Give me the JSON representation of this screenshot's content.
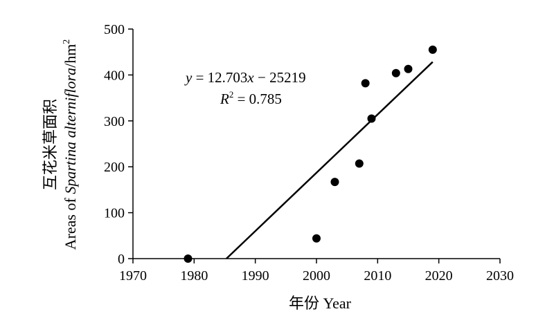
{
  "chart_data": {
    "type": "scatter",
    "xlabel": "年份 Year",
    "ylabel_cn": "互花米草面积",
    "ylabel_en_prefix": "Areas of ",
    "ylabel_en_italic": "Spartina alterniflora",
    "ylabel_en_suffix": "/hm",
    "ylabel_en_sup": "2",
    "xlim": [
      1970,
      2030
    ],
    "ylim": [
      0,
      500
    ],
    "xticks": [
      1970,
      1980,
      1990,
      2000,
      2010,
      2020,
      2030
    ],
    "yticks": [
      0,
      100,
      200,
      300,
      400,
      500
    ],
    "grid": false,
    "points": [
      {
        "x": 1979,
        "y": 0
      },
      {
        "x": 2000,
        "y": 44
      },
      {
        "x": 2003,
        "y": 167
      },
      {
        "x": 2007,
        "y": 207
      },
      {
        "x": 2008,
        "y": 382
      },
      {
        "x": 2009,
        "y": 305
      },
      {
        "x": 2013,
        "y": 404
      },
      {
        "x": 2015,
        "y": 413
      },
      {
        "x": 2019,
        "y": 455
      }
    ],
    "trendline": {
      "slope": 12.703,
      "intercept": -25219,
      "x_end": 2019
    },
    "equation": {
      "y_var": "y",
      "eq_rest": " = 12.703",
      "x_var": "x",
      "eq_tail": " − 25219",
      "r_var": "R",
      "r_sup": "2",
      "r_rest": " = 0.785"
    }
  }
}
